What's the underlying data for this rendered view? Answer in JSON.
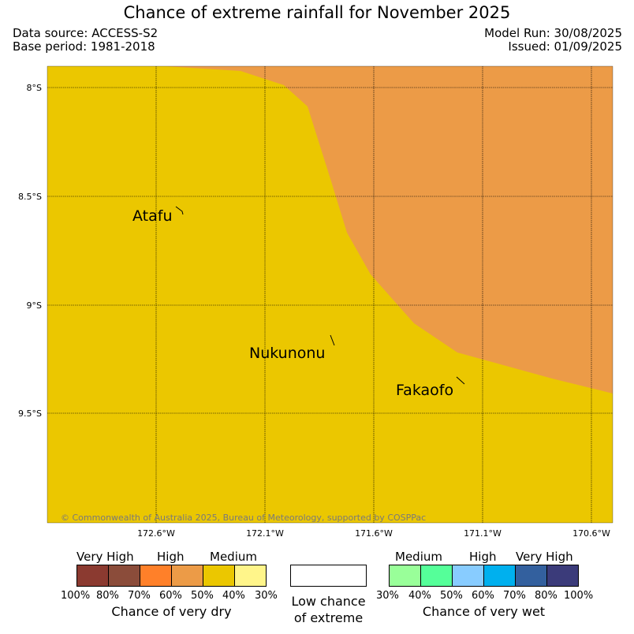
{
  "header": {
    "title": "Chance of extreme rainfall for November 2025",
    "data_source": "Data source: ACCESS-S2",
    "base_period": "Base period: 1981-2018",
    "model_run": "Model Run: 30/08/2025",
    "issued": "Issued: 01/09/2025"
  },
  "map": {
    "lat_labels": [
      "8°S",
      "8.5°S",
      "9°S",
      "9.5°S"
    ],
    "lon_labels": [
      "172.6°W",
      "172.1°W",
      "171.6°W",
      "171.1°W",
      "170.6°W"
    ],
    "places": [
      "Atafu",
      "Nukunonu",
      "Fakaofo"
    ],
    "copyright": "© Commonwealth of Australia 2025, Bureau of Meteorology, supported by COSPPac",
    "colors": {
      "medium_dry": "#ebc700",
      "high_dry": "#ec9b47",
      "grid": "#000000"
    }
  },
  "legend": {
    "dry": {
      "headings": [
        "Very High",
        "High",
        "Medium"
      ],
      "pcts": [
        "100%",
        "80%",
        "70%",
        "60%",
        "50%",
        "40%",
        "30%"
      ],
      "colors": [
        "#8b3a30",
        "#8b4c3a",
        "#ff8029",
        "#ec9b47",
        "#ebc700",
        "#fff58a"
      ],
      "caption": "Chance of very dry"
    },
    "low": {
      "caption_line1": "Low chance",
      "caption_line2": "of extreme"
    },
    "wet": {
      "headings": [
        "Medium",
        "High",
        "Very High"
      ],
      "pcts": [
        "30%",
        "40%",
        "50%",
        "60%",
        "70%",
        "80%",
        "100%"
      ],
      "colors": [
        "#99ff99",
        "#55ff99",
        "#88ccff",
        "#00b0ee",
        "#33609e",
        "#3b3b7a"
      ],
      "caption": "Chance of very wet"
    }
  }
}
